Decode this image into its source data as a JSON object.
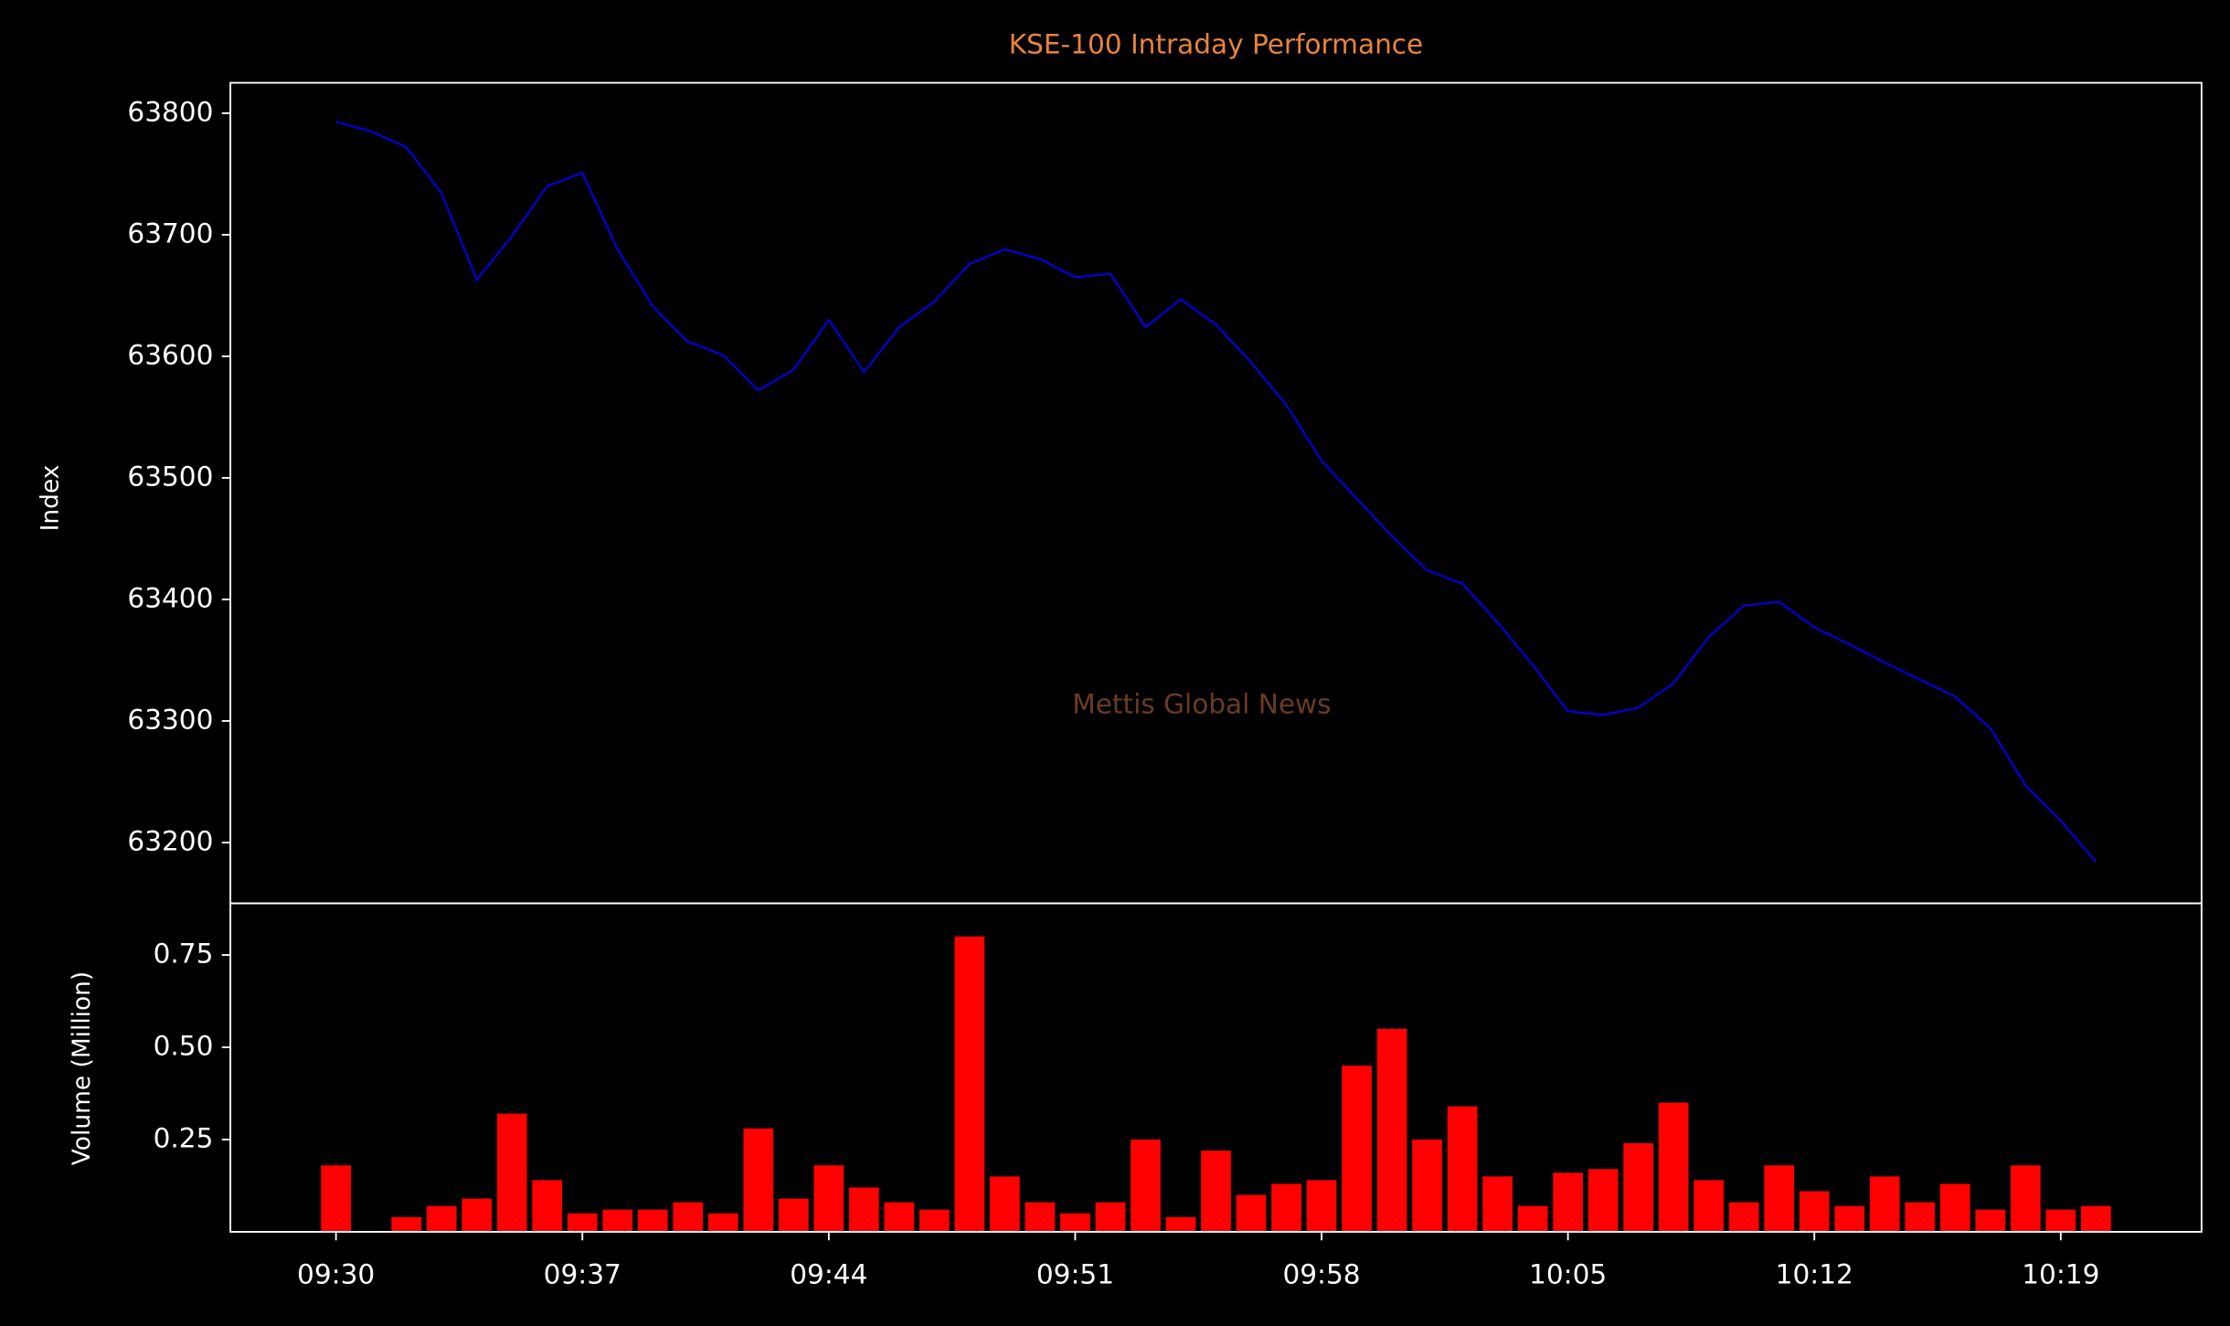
{
  "chart_data": [
    {
      "type": "line",
      "title": "KSE-100 Intraday Performance",
      "ylabel": "Index",
      "annotation": "Mettis Global News",
      "x": [
        "09:30",
        "09:31",
        "09:32",
        "09:33",
        "09:34",
        "09:35",
        "09:36",
        "09:37",
        "09:38",
        "09:39",
        "09:40",
        "09:41",
        "09:42",
        "09:43",
        "09:44",
        "09:45",
        "09:46",
        "09:47",
        "09:48",
        "09:49",
        "09:50",
        "09:51",
        "09:52",
        "09:53",
        "09:54",
        "09:55",
        "09:56",
        "09:57",
        "09:58",
        "09:59",
        "10:00",
        "10:01",
        "10:02",
        "10:03",
        "10:04",
        "10:05",
        "10:06",
        "10:07",
        "10:08",
        "10:09",
        "10:10",
        "10:11",
        "10:12",
        "10:13",
        "10:14",
        "10:15",
        "10:16",
        "10:17",
        "10:18",
        "10:19",
        "10:20"
      ],
      "series": [
        {
          "name": "Index",
          "color": "#0000ee",
          "values": [
            63793,
            63785,
            63772,
            63734,
            63663,
            63699,
            63740,
            63751,
            63688,
            63641,
            63612,
            63601,
            63572,
            63589,
            63630,
            63587,
            63624,
            63645,
            63676,
            63688,
            63680,
            63665,
            63668,
            63624,
            63647,
            63626,
            63595,
            63560,
            63514,
            63483,
            63452,
            63424,
            63413,
            63381,
            63346,
            63308,
            63305,
            63311,
            63331,
            63369,
            63395,
            63398,
            63377,
            63363,
            63348,
            63334,
            63320,
            63294,
            63247,
            63218,
            63184
          ]
        }
      ],
      "xlim": [
        "09:27",
        "10:23"
      ],
      "ylim": [
        63150,
        63825
      ],
      "yticks": [
        63200,
        63300,
        63400,
        63500,
        63600,
        63700,
        63800
      ]
    },
    {
      "type": "bar",
      "ylabel": "Volume (Million)",
      "x": [
        "09:30",
        "09:31",
        "09:32",
        "09:33",
        "09:34",
        "09:35",
        "09:36",
        "09:37",
        "09:38",
        "09:39",
        "09:40",
        "09:41",
        "09:42",
        "09:43",
        "09:44",
        "09:45",
        "09:46",
        "09:47",
        "09:48",
        "09:49",
        "09:50",
        "09:51",
        "09:52",
        "09:53",
        "09:54",
        "09:55",
        "09:56",
        "09:57",
        "09:58",
        "09:59",
        "10:00",
        "10:01",
        "10:02",
        "10:03",
        "10:04",
        "10:05",
        "10:06",
        "10:07",
        "10:08",
        "10:09",
        "10:10",
        "10:11",
        "10:12",
        "10:13",
        "10:14",
        "10:15",
        "10:16",
        "10:17",
        "10:18",
        "10:19",
        "10:20"
      ],
      "series": [
        {
          "name": "Volume",
          "color": "#ff0000",
          "values": [
            0.18,
            0,
            0.04,
            0.07,
            0.09,
            0.32,
            0.14,
            0.05,
            0.06,
            0.06,
            0.08,
            0.05,
            0.28,
            0.09,
            0.18,
            0.12,
            0.08,
            0.06,
            0.8,
            0.15,
            0.08,
            0.05,
            0.08,
            0.25,
            0.04,
            0.22,
            0.1,
            0.13,
            0.14,
            0.45,
            0.55,
            0.25,
            0.34,
            0.15,
            0.07,
            0.16,
            0.17,
            0.24,
            0.35,
            0.14,
            0.08,
            0.18,
            0.11,
            0.07,
            0.15,
            0.08,
            0.13,
            0.06,
            0.18,
            0.06,
            0.07
          ]
        }
      ],
      "xlim": [
        "09:27",
        "10:23"
      ],
      "ylim": [
        0,
        0.89
      ],
      "yticks": [
        0.25,
        {
          "value": 0.5,
          "label": "0.50"
        },
        0.75
      ],
      "xticks": [
        "09:30",
        "09:37",
        "09:44",
        "09:51",
        "09:58",
        "10:05",
        "10:12",
        "10:19"
      ]
    }
  ]
}
